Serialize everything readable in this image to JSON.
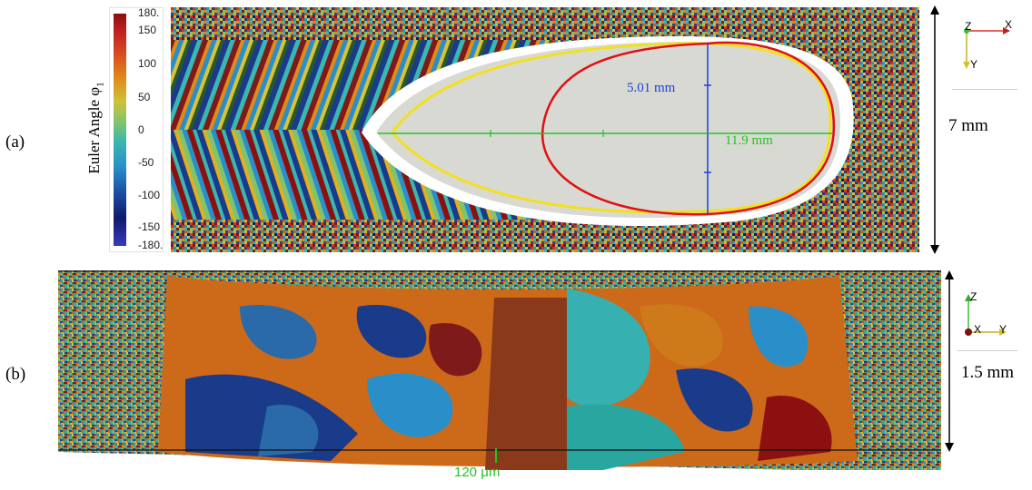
{
  "panel_a": {
    "label": "(a)",
    "colorbar": {
      "title": "Euler Angle φ",
      "title_subscript": "1",
      "ticks": [
        "180.",
        "150",
        "100",
        "50",
        "0",
        "-50",
        "-100",
        "-150",
        "-180."
      ]
    },
    "measurements": {
      "depth": "5.01 mm",
      "length": "11.9 mm"
    },
    "scale_label": "7 mm",
    "axes_triad": {
      "z": "Z",
      "x": "X",
      "y": "Y"
    }
  },
  "panel_b": {
    "label": "(b)",
    "scale_label": "1.5 mm",
    "bottom_label": "120 μm",
    "axes_triad": {
      "z": "Z",
      "x": "X",
      "y": "Y"
    }
  },
  "colors": {
    "measure_depth": "#1e3fd6",
    "measure_length": "#22c422",
    "contour_red": "#e01010",
    "contour_yellow": "#f2e020",
    "melt_pool": "#d9d9d4"
  }
}
